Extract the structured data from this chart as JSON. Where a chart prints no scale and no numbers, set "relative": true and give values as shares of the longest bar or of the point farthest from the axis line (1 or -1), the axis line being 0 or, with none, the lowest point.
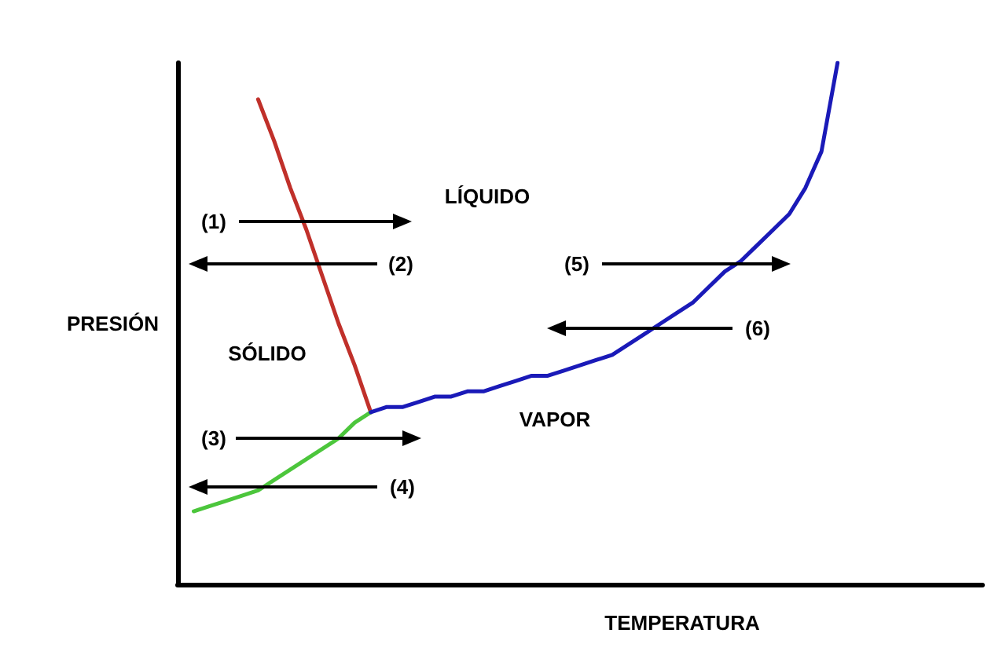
{
  "chart_data": {
    "type": "line",
    "relative": true,
    "xlabel": "TEMPERATURA",
    "ylabel": "PRESIÓN",
    "grid": false,
    "marker": "none",
    "line_style": "solid",
    "categories": [
      null,
      null,
      null,
      null,
      null,
      null,
      null,
      null,
      null,
      null,
      null,
      null,
      null,
      null,
      null,
      null,
      null,
      null,
      null,
      null,
      null,
      null,
      null,
      null,
      null,
      null,
      null,
      null,
      null,
      null,
      null,
      null,
      null,
      null,
      null,
      null,
      null,
      null,
      null,
      null,
      null,
      null,
      null,
      null,
      null,
      null,
      null,
      null,
      null,
      null,
      null
    ],
    "series": [
      {
        "color": "#c0302a",
        "values": [
          null,
          null,
          null,
          null,
          null,
          0.93,
          0.85,
          0.76,
          0.68,
          0.59,
          0.5,
          0.42,
          0.33,
          null,
          null,
          null,
          null,
          null,
          null,
          null,
          null,
          null,
          null,
          null,
          null,
          null,
          null,
          null,
          null,
          null,
          null,
          null,
          null,
          null,
          null,
          null,
          null,
          null,
          null,
          null,
          null,
          null,
          null,
          null,
          null,
          null,
          null,
          null,
          null,
          null,
          null
        ]
      },
      {
        "color": "#4cc63c",
        "values": [
          null,
          0.14,
          0.15,
          0.16,
          0.17,
          0.18,
          0.2,
          0.22,
          0.24,
          0.26,
          0.28,
          0.31,
          0.33,
          null,
          null,
          null,
          null,
          null,
          null,
          null,
          null,
          null,
          null,
          null,
          null,
          null,
          null,
          null,
          null,
          null,
          null,
          null,
          null,
          null,
          null,
          null,
          null,
          null,
          null,
          null,
          null,
          null,
          null,
          null,
          null,
          null,
          null,
          null,
          null,
          null,
          null
        ]
      },
      {
        "color": "#1a1ab8",
        "values": [
          null,
          null,
          null,
          null,
          null,
          null,
          null,
          null,
          null,
          null,
          null,
          null,
          0.33,
          0.34,
          0.34,
          0.35,
          0.36,
          0.36,
          0.37,
          0.37,
          0.38,
          0.39,
          0.4,
          0.4,
          0.41,
          0.42,
          0.43,
          0.44,
          0.46,
          0.48,
          0.5,
          0.52,
          0.54,
          0.57,
          0.6,
          0.62,
          0.65,
          0.68,
          0.71,
          0.76,
          0.83,
          1,
          null,
          null,
          null,
          null,
          null,
          null,
          null,
          null,
          null
        ]
      }
    ],
    "annotations": [
      "(1)",
      "(2)",
      "(3)",
      "(4)",
      "(5)",
      "(6)",
      "LÍQUIDO",
      "SÓLIDO",
      "VAPOR"
    ]
  }
}
